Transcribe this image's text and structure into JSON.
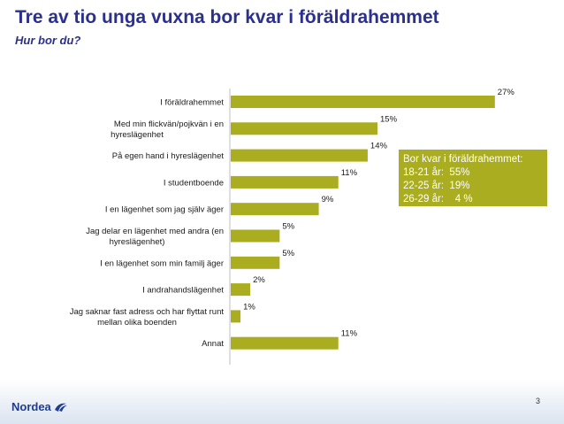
{
  "slide": {
    "title": "Tre av tio unga vuxna bor kvar i föräldrahemmet",
    "subtitle": "Hur bor du?",
    "page_number": "3",
    "logo_text": "Nordea"
  },
  "note": {
    "lines": [
      "Bor kvar i föräldrahemmet:",
      "18-21 år:  55%",
      "22-25 år:  19%",
      "26-29 år:    4 %"
    ],
    "color": "#a9ad1f"
  },
  "chart_data": {
    "type": "bar",
    "orientation": "horizontal",
    "categories": [
      [
        "I föräldrahemmet"
      ],
      [
        "Med min flickvän/pojkvän i en",
        "hyreslägenhet"
      ],
      [
        "På egen hand i hyreslägenhet"
      ],
      [
        "I studentboende"
      ],
      [
        "I en lägenhet som jag själv äger"
      ],
      [
        "Jag delar en lägenhet med andra (en",
        "hyreslägenhet)"
      ],
      [
        "I en lägenhet som min familj äger"
      ],
      [
        "I andrahandslägenhet"
      ],
      [
        "Jag saknar fast adress och har flyttat runt",
        "mellan olika boenden"
      ],
      [
        "Annat"
      ]
    ],
    "values": [
      27,
      15,
      14,
      11,
      9,
      5,
      5,
      2,
      1,
      11
    ],
    "value_labels": [
      "27%",
      "15%",
      "14%",
      "11%",
      "9%",
      "5%",
      "5%",
      "2%",
      "1%",
      "11%"
    ],
    "xlim": [
      0,
      30
    ],
    "bar_color": "#a9ad1f",
    "grid": false,
    "legend": "none"
  }
}
